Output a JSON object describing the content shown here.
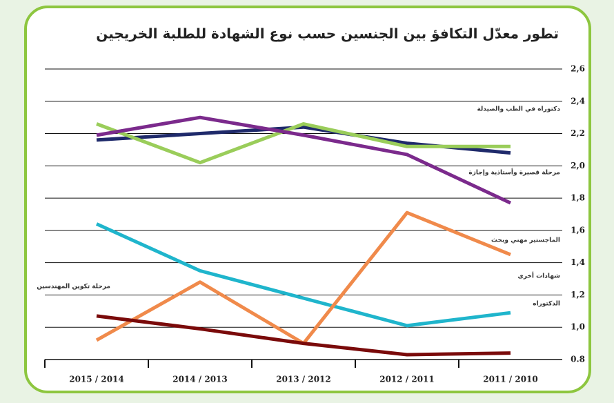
{
  "chart_data": {
    "type": "line",
    "title": "تطور معدّل التكافؤ بين الجنسين حسب نوع الشهادة للطلبة الخريجين",
    "categories": [
      "2015 / 2014",
      "2014 / 2013",
      "2013 / 2012",
      "2012 / 2011",
      "2011 / 2010"
    ],
    "series": [
      {
        "color": "#1f2a6b",
        "values": [
          2.16,
          2.2,
          2.24,
          2.14,
          2.08
        ]
      },
      {
        "color": "#9acd5a",
        "values": [
          2.26,
          2.02,
          2.26,
          2.12,
          2.12
        ]
      },
      {
        "color": "#7b2a8c",
        "values": [
          2.19,
          2.3,
          2.19,
          2.07,
          1.77
        ]
      },
      {
        "color": "#1fb5cc",
        "values": [
          1.64,
          1.35,
          1.18,
          1.01,
          1.09
        ]
      },
      {
        "color": "#f08a4b",
        "values": [
          0.92,
          1.28,
          0.9,
          1.71,
          1.45
        ]
      },
      {
        "color": "#7a0a0a",
        "values": [
          1.07,
          0.99,
          0.9,
          0.83,
          0.84
        ]
      }
    ],
    "annotations": [
      "دكتوراه في الطب والصيدلة",
      "مرحلة قصيرة وأستاذية وإجازة",
      "الماجستير مهني وبحث",
      "شهادات أخرى",
      "الدكتوراه",
      "مرحلة تكوين المهندسين"
    ],
    "ylim": [
      0.8,
      2.6
    ],
    "yticks": [
      {
        "value": 0.8,
        "label": "0.8"
      },
      {
        "value": 1.0,
        "label": "1,0"
      },
      {
        "value": 1.2,
        "label": "1,2"
      },
      {
        "value": 1.4,
        "label": "1,4"
      },
      {
        "value": 1.6,
        "label": "1,6"
      },
      {
        "value": 1.8,
        "label": "1,8"
      },
      {
        "value": 2.0,
        "label": "2,0"
      },
      {
        "value": 2.2,
        "label": "2,2"
      },
      {
        "value": 2.4,
        "label": "2,4"
      },
      {
        "value": 2.6,
        "label": "2,6"
      }
    ],
    "grid": true
  }
}
